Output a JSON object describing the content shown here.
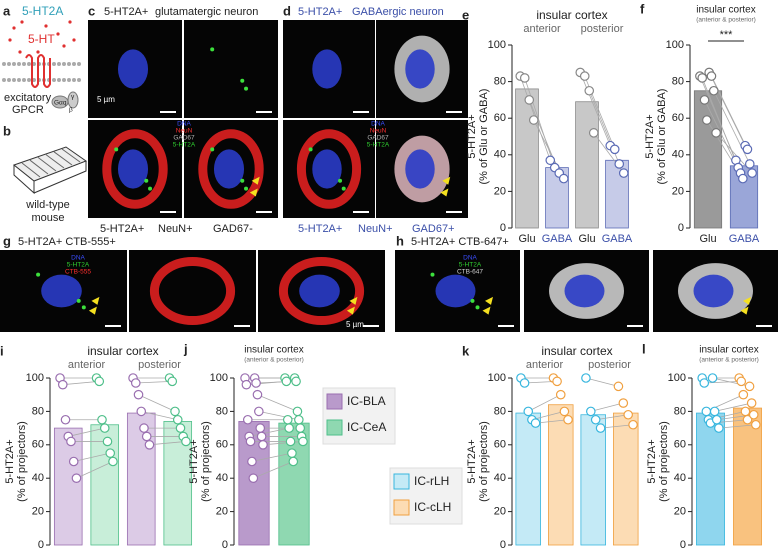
{
  "panels": {
    "a": {
      "label": "a",
      "receptor": "5-HT2A",
      "ligand": "5-HT",
      "caption_lines": [
        "excitatory",
        "GPCR"
      ],
      "subunits": [
        "Gαq",
        "β",
        "γ"
      ]
    },
    "b": {
      "label": "b",
      "caption_lines": [
        "wild-type",
        "mouse"
      ]
    },
    "c": {
      "label": "c",
      "title": "5-HT2A+",
      "subtitle": "glutamatergic neuron",
      "channels": [
        "DNA",
        "NeuN",
        "GAD67",
        "5-HT2A"
      ],
      "channel_colors": [
        "#3b4fff",
        "#ff3030",
        "#b0b0b0",
        "#30d030"
      ],
      "scale": "5 µm",
      "markers": [
        "5-HT2A+",
        "NeuN+",
        "GAD67-"
      ]
    },
    "d": {
      "label": "d",
      "title": "5-HT2A+",
      "subtitle": "GABAergic neuron",
      "channels": [
        "DNA",
        "NeuN",
        "GAD67",
        "5-HT2A"
      ],
      "channel_colors": [
        "#3b4fff",
        "#ff3030",
        "#b0b0b0",
        "#30d030"
      ],
      "markers": [
        "5-HT2A+",
        "NeuN+",
        "GAD67+"
      ]
    },
    "g": {
      "label": "g",
      "title": "5-HT2A+ CTB-555+",
      "channels": [
        "DNA",
        "5-HT2A",
        "CTB-555"
      ],
      "channel_colors": [
        "#3b4fff",
        "#30d030",
        "#ff3030"
      ],
      "scale": "5 µm"
    },
    "h": {
      "label": "h",
      "title": "5-HT2A+ CTB-647+",
      "channels": [
        "DNA",
        "5-HT2A",
        "CTB-647"
      ],
      "channel_colors": [
        "#3b4fff",
        "#30d030",
        "#d0d0d0"
      ]
    }
  },
  "chart_data": [
    {
      "type": "bar",
      "label": "e",
      "title": "insular cortex",
      "groups": [
        "anterior",
        "posterior"
      ],
      "ylabel": [
        "5-HT2A+",
        "(% of Glu or GABA)"
      ],
      "categories": [
        "Glu",
        "GABA",
        "Glu",
        "GABA"
      ],
      "values": [
        76,
        33,
        69,
        37
      ],
      "colors": [
        "#c8c8c8",
        "#c6cbe8",
        "#c8c8c8",
        "#c6cbe8"
      ],
      "edges": [
        "#888888",
        "#5b6bb5",
        "#888888",
        "#5b6bb5"
      ],
      "label_colors": [
        "#222222",
        "#3b4fa8",
        "#222222",
        "#3b4fa8"
      ],
      "points": [
        [
          83,
          82,
          70,
          59
        ],
        [
          37,
          33,
          30,
          27
        ],
        [
          85,
          83,
          75,
          52
        ],
        [
          45,
          43,
          35,
          30
        ]
      ],
      "ylim": [
        0,
        100
      ],
      "yticks": [
        0,
        20,
        40,
        60,
        80,
        100
      ]
    },
    {
      "type": "bar",
      "label": "f",
      "title": "insular cortex",
      "subtitle": "(anterior & posterior)",
      "annotation": "***",
      "ylabel": [
        "5-HT2A+",
        "(% of Glu or GABA)"
      ],
      "categories": [
        "Glu",
        "GABA"
      ],
      "values": [
        75,
        34
      ],
      "colors": [
        "#9a9a9a",
        "#9aa6d8"
      ],
      "edges": [
        "#777777",
        "#5b6bb5"
      ],
      "label_colors": [
        "#222222",
        "#3b4fa8"
      ],
      "points": [
        [
          83,
          82,
          70,
          59,
          85,
          83,
          75,
          52
        ],
        [
          37,
          33,
          30,
          27,
          45,
          43,
          35,
          30
        ]
      ],
      "ylim": [
        0,
        100
      ],
      "yticks": [
        0,
        20,
        40,
        60,
        80,
        100
      ]
    },
    {
      "type": "bar",
      "label": "i",
      "title": "insular cortex",
      "groups": [
        "anterior",
        "posterior"
      ],
      "ylabel": [
        "5-HT2A+",
        "(% of projectors)"
      ],
      "series": [
        {
          "color": "#dccbe6",
          "edge": "#9a6fb0",
          "values": [
            70,
            79
          ],
          "points": [
            [
              100,
              96,
              75,
              65,
              62,
              50,
              40
            ],
            [
              100,
              97,
              90,
              80,
              70,
              65,
              60
            ]
          ]
        },
        {
          "color": "#c8eed9",
          "edge": "#4fbf8a",
          "values": [
            72,
            74
          ],
          "points": [
            [
              100,
              98,
              75,
              70,
              62,
              55,
              50
            ],
            [
              100,
              98,
              80,
              75,
              70,
              65,
              62
            ]
          ]
        }
      ],
      "ylim": [
        0,
        100
      ],
      "yticks": [
        0,
        20,
        40,
        60,
        80,
        100
      ]
    },
    {
      "type": "bar",
      "label": "j",
      "title": "insular cortex",
      "subtitle": "(anterior & posterior)",
      "ylabel": [
        "5-HT2A+",
        "(% of projectors)"
      ],
      "series": [
        {
          "name": "IC-BLA",
          "color": "#b99acb",
          "edge": "#9a6fb0",
          "values": [
            74
          ],
          "points": [
            [
              100,
              96,
              75,
              65,
              62,
              50,
              40,
              100,
              97,
              90,
              80,
              70,
              65,
              60
            ]
          ]
        },
        {
          "name": "IC-CeA",
          "color": "#8fd8b1",
          "edge": "#4fbf8a",
          "values": [
            73
          ],
          "points": [
            [
              100,
              98,
              75,
              70,
              62,
              55,
              50,
              100,
              98,
              80,
              75,
              70,
              65,
              62
            ]
          ]
        }
      ],
      "ylim": [
        0,
        100
      ],
      "yticks": [
        0,
        20,
        40,
        60,
        80,
        100
      ]
    },
    {
      "type": "bar",
      "label": "k",
      "title": "insular cortex",
      "groups": [
        "anterior",
        "posterior"
      ],
      "ylabel": [
        "5-HT2A+",
        "(% of projectors)"
      ],
      "series": [
        {
          "name": "IC-rLH",
          "color": "#c4eaf6",
          "edge": "#38b6de",
          "values": [
            79,
            78
          ],
          "points": [
            [
              100,
              97,
              80,
              75,
              73
            ],
            [
              100,
              80,
              75,
              70
            ]
          ]
        },
        {
          "name": "IC-cLH",
          "color": "#fcdcb4",
          "edge": "#f0a040",
          "values": [
            84,
            79
          ],
          "points": [
            [
              100,
              98,
              90,
              80,
              75
            ],
            [
              95,
              85,
              78,
              72
            ]
          ]
        }
      ],
      "ylim": [
        0,
        100
      ],
      "yticks": [
        0,
        20,
        40,
        60,
        80,
        100
      ]
    },
    {
      "type": "bar",
      "label": "l",
      "title": "insular cortex",
      "subtitle": "(anterior & posterior)",
      "ylabel": [
        "5-HT2A+",
        "(% of projectors)"
      ],
      "series": [
        {
          "color": "#8fd6ee",
          "edge": "#38b6de",
          "values": [
            79
          ],
          "points": [
            [
              100,
              97,
              80,
              75,
              73,
              100,
              80,
              75,
              70
            ]
          ]
        },
        {
          "color": "#f9c27f",
          "edge": "#f0a040",
          "values": [
            82
          ],
          "points": [
            [
              100,
              98,
              90,
              80,
              75,
              95,
              85,
              78,
              72
            ]
          ]
        }
      ],
      "ylim": [
        0,
        100
      ],
      "yticks": [
        0,
        20,
        40,
        60,
        80,
        100
      ]
    }
  ]
}
